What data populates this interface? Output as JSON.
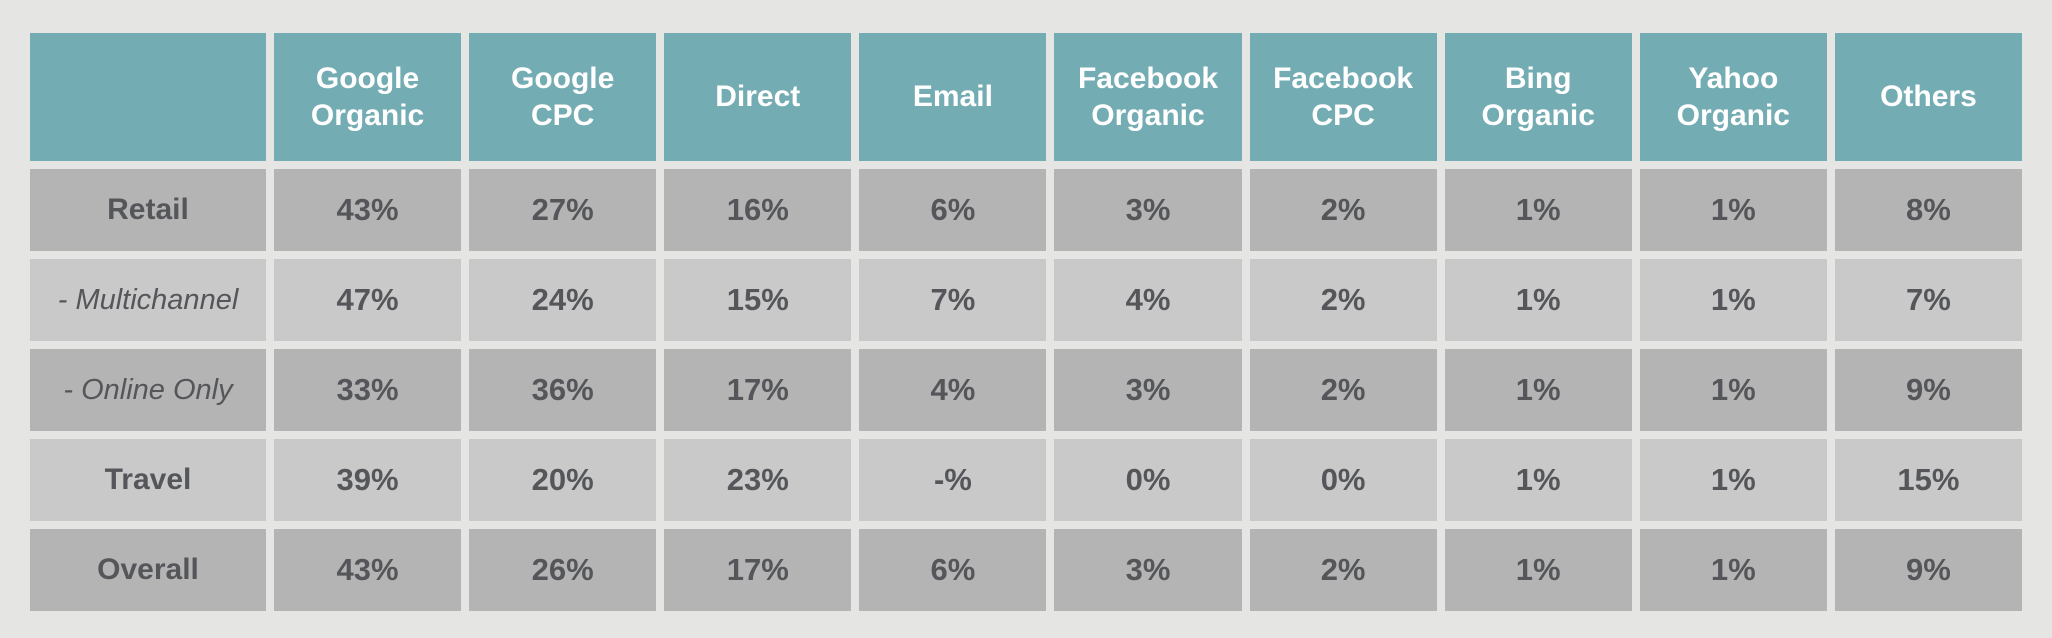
{
  "page": {
    "background": "#e5e5e3"
  },
  "colors": {
    "header_bg": "#74acb3",
    "header_text": "#ffffff",
    "row_dark_bg": "#b4b4b4",
    "row_light_bg": "#c9c9c9",
    "cell_text": "#55565a"
  },
  "chart_data": {
    "type": "table",
    "title": "",
    "columns": [
      "",
      "Google Organic",
      "Google CPC",
      "Direct",
      "Email",
      "Facebook Organic",
      "Facebook CPC",
      "Bing Organic",
      "Yahoo Organic",
      "Others"
    ],
    "rows": [
      {
        "label": "Retail",
        "italic": false,
        "shade": "dark",
        "values": [
          "43%",
          "27%",
          "16%",
          "6%",
          "3%",
          "2%",
          "1%",
          "1%",
          "8%"
        ]
      },
      {
        "label": "- Multichannel",
        "italic": true,
        "shade": "light",
        "values": [
          "47%",
          "24%",
          "15%",
          "7%",
          "4%",
          "2%",
          "1%",
          "1%",
          "7%"
        ]
      },
      {
        "label": "- Online Only",
        "italic": true,
        "shade": "dark",
        "values": [
          "33%",
          "36%",
          "17%",
          "4%",
          "3%",
          "2%",
          "1%",
          "1%",
          "9%"
        ]
      },
      {
        "label": "Travel",
        "italic": false,
        "shade": "light",
        "values": [
          "39%",
          "20%",
          "23%",
          "-%",
          "0%",
          "0%",
          "1%",
          "1%",
          "15%"
        ]
      },
      {
        "label": "Overall",
        "italic": false,
        "shade": "dark",
        "values": [
          "43%",
          "26%",
          "17%",
          "6%",
          "3%",
          "2%",
          "1%",
          "1%",
          "9%"
        ]
      }
    ],
    "layout": {
      "header_row_shaded": true,
      "striped": true,
      "first_column_is_row_labels": true
    }
  }
}
